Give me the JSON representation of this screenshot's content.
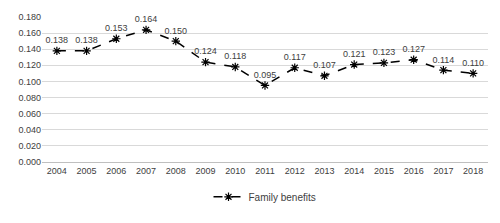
{
  "chart_data": {
    "type": "line",
    "categories": [
      "2004",
      "2005",
      "2006",
      "2007",
      "2008",
      "2009",
      "2010",
      "2011",
      "2012",
      "2013",
      "2014",
      "2015",
      "2016",
      "2017",
      "2018"
    ],
    "series": [
      {
        "name": "Family benefits",
        "color": "#000000",
        "marker": "asterisk",
        "line_style": "dash",
        "values": [
          0.138,
          0.138,
          0.153,
          0.164,
          0.15,
          0.124,
          0.118,
          0.095,
          0.117,
          0.107,
          0.121,
          0.123,
          0.127,
          0.114,
          0.11
        ],
        "value_labels": [
          "0.138",
          "0.138",
          "0.153",
          "0.164",
          "0.150",
          "0.124",
          "0.118",
          "0.095",
          "0.117",
          "0.107",
          "0.121",
          "0.123",
          "0.127",
          "0.114",
          "0.110"
        ]
      }
    ],
    "ylim": [
      0,
      0.18
    ],
    "yticks": [
      {
        "value": 0,
        "label": "0.000"
      },
      {
        "value": 0.02,
        "label": "0.020"
      },
      {
        "value": 0.04,
        "label": "0.040"
      },
      {
        "value": 0.06,
        "label": "0.060"
      },
      {
        "value": 0.08,
        "label": "0.080"
      },
      {
        "value": 0.1,
        "label": "0.100"
      },
      {
        "value": 0.12,
        "label": "0.120"
      },
      {
        "value": 0.14,
        "label": "0.140"
      },
      {
        "value": 0.16,
        "label": "0.160"
      },
      {
        "value": 0.18,
        "label": "0.180"
      }
    ],
    "grid": true,
    "data_labels": true,
    "legend": "bottom"
  }
}
